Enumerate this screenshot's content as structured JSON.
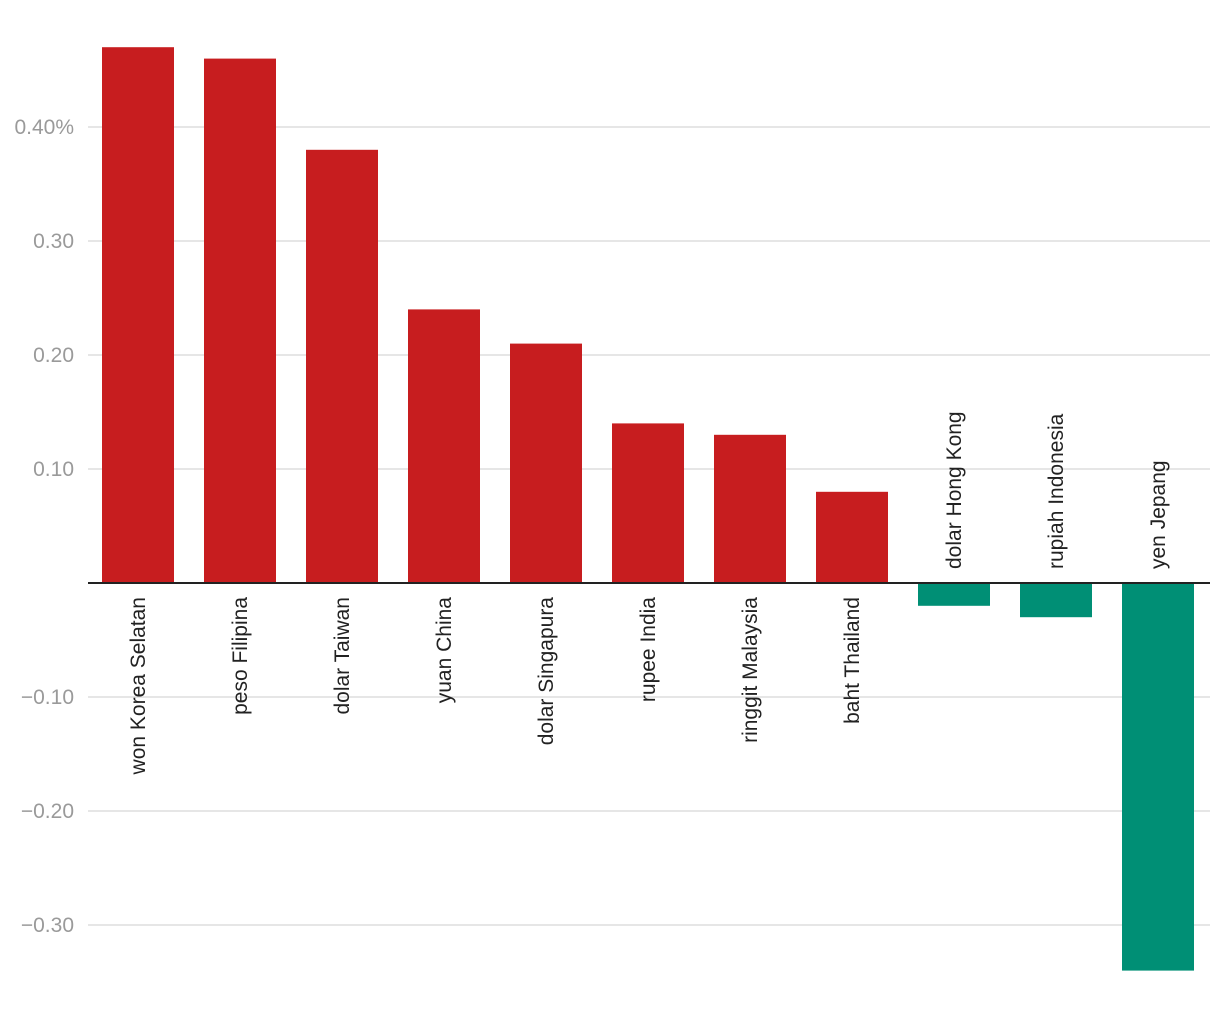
{
  "chart_data": {
    "type": "bar",
    "categories": [
      "won Korea Selatan",
      "peso Filipina",
      "dolar Taiwan",
      "yuan China",
      "dolar Singapura",
      "rupee India",
      "ringgit Malaysia",
      "baht Thailand",
      "dolar Hong Kong",
      "rupiah Indonesia",
      "yen Jepang"
    ],
    "values": [
      0.47,
      0.46,
      0.38,
      0.24,
      0.21,
      0.14,
      0.13,
      0.08,
      -0.02,
      -0.03,
      -0.34
    ],
    "y_ticks": [
      {
        "value": 0.4,
        "label": "0.40%"
      },
      {
        "value": 0.3,
        "label": "0.30"
      },
      {
        "value": 0.2,
        "label": "0.20"
      },
      {
        "value": 0.1,
        "label": "0.10"
      },
      {
        "value": -0.1,
        "label": "−0.10"
      },
      {
        "value": -0.2,
        "label": "−0.20"
      },
      {
        "value": -0.3,
        "label": "−0.30"
      }
    ],
    "ylim": [
      -0.35,
      0.5
    ],
    "grid": true,
    "colors": {
      "positive": "#c71d1f",
      "negative": "#008f75",
      "grid": "#dedede",
      "zero_line": "#222222",
      "tick_text": "#9a9a9a",
      "label_text": "#222222"
    },
    "title": "",
    "xlabel": "",
    "ylabel": ""
  }
}
